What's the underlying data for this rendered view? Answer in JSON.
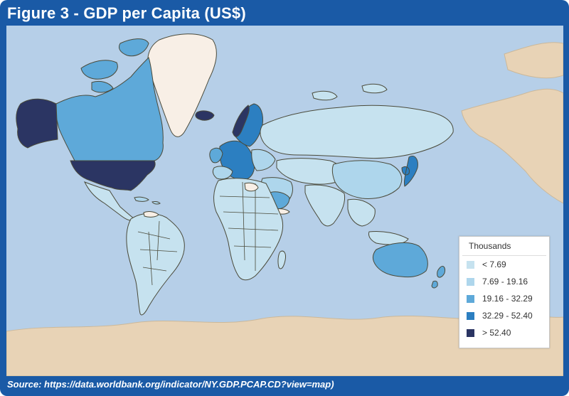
{
  "figure": {
    "title": "Figure 3 - GDP per Capita (US$)",
    "source": "Source: https://data.worldbank.org/indicator/NY.GDP.PCAP.CD?view=map)"
  },
  "colors": {
    "frame": "#1a5aa6",
    "ocean": "#b6cfe8",
    "land_tan": "#e8d3b6",
    "no_data": "#f8efe6",
    "border": "#4a4a3a"
  },
  "legend": {
    "title": "Thousands",
    "items": [
      {
        "label": "< 7.69",
        "color": "#c6e2ef"
      },
      {
        "label": "7.69 - 19.16",
        "color": "#aed6ec"
      },
      {
        "label": "19.16 - 32.29",
        "color": "#5ea9d9"
      },
      {
        "label": "32.29 - 52.40",
        "color": "#2c7fc1"
      },
      {
        "label": "> 52.40",
        "color": "#2b3563"
      }
    ]
  }
}
